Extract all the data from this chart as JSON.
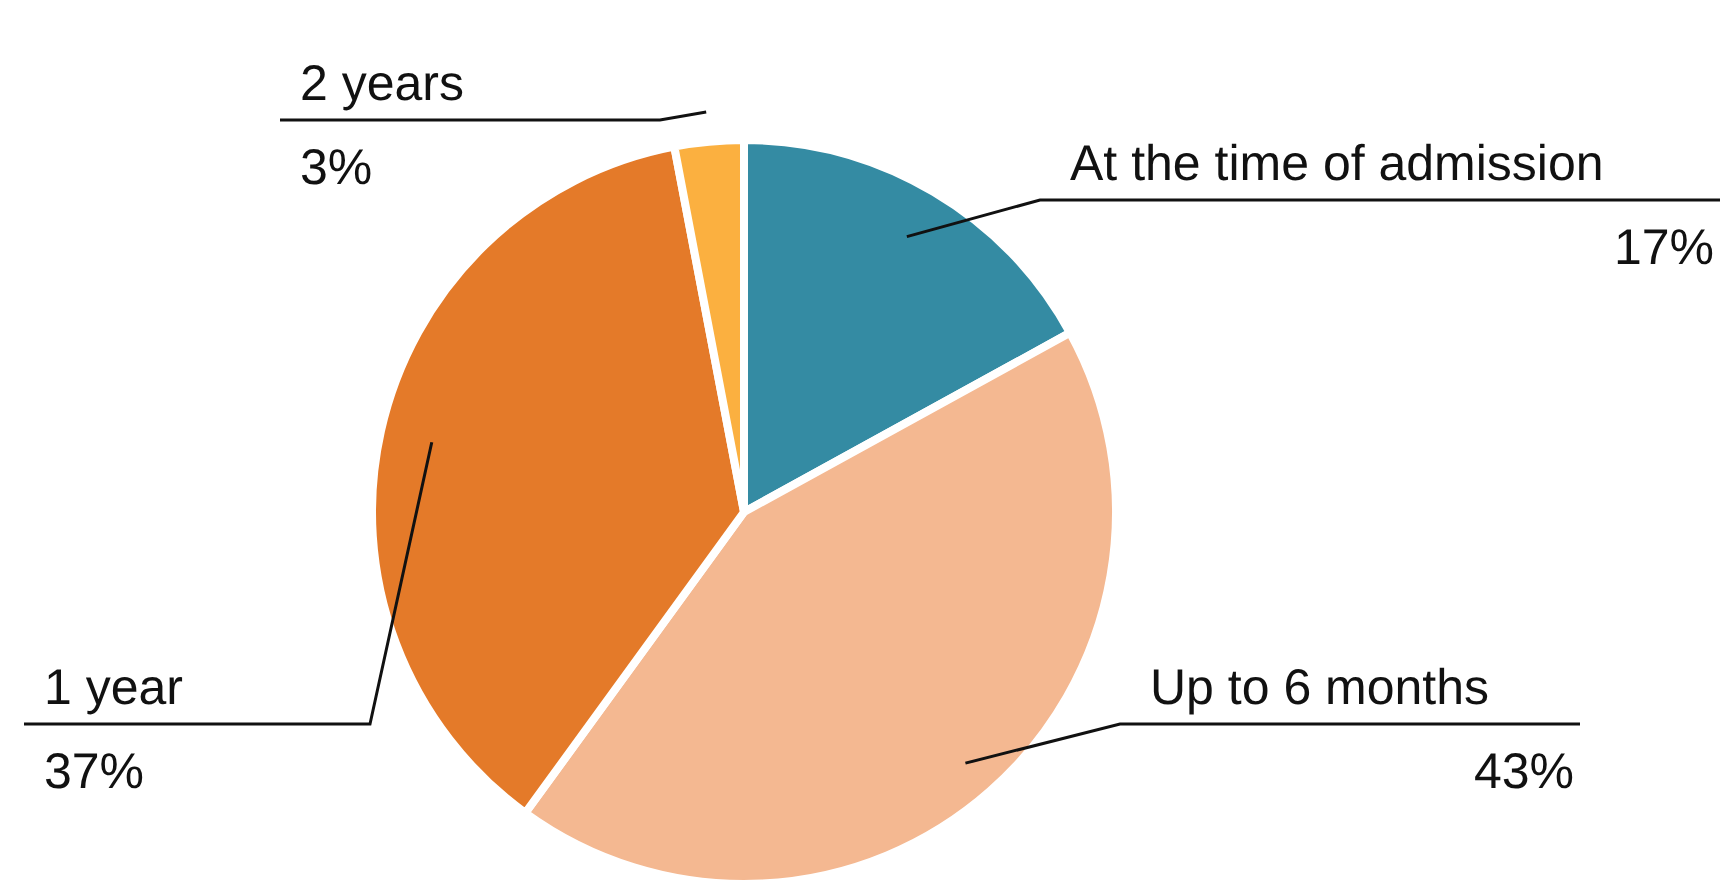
{
  "chart_data": {
    "type": "pie",
    "categories": [
      "At the time of admission",
      "Up to 6 months",
      "1 year",
      "2 years"
    ],
    "values": [
      17,
      43,
      37,
      3
    ],
    "value_labels": [
      "17%",
      "43%",
      "37%",
      "3%"
    ],
    "colors": [
      "#348ba3",
      "#f4b891",
      "#e47a29",
      "#fbb040"
    ],
    "legend": false
  }
}
